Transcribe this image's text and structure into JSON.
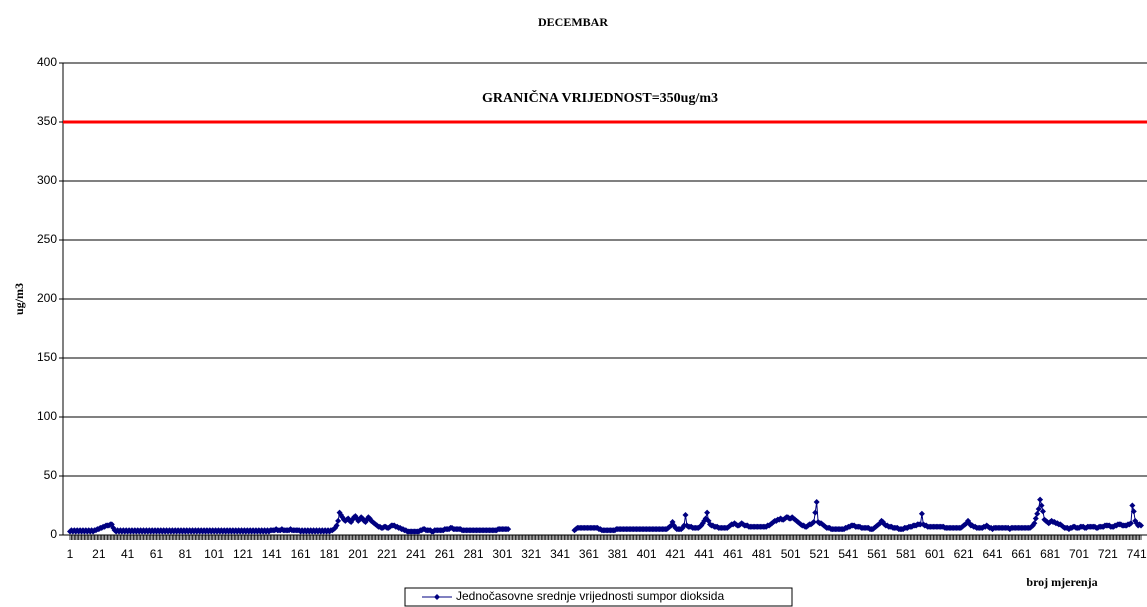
{
  "chart_data": {
    "type": "line",
    "title": "DECEMBAR",
    "y_label": "ug/m3",
    "x_label": "broj mjerenja",
    "threshold": {
      "value": 350,
      "label": "GRANIČNA VRIJEDNOST=350ug/m3",
      "color": "#ff0000"
    },
    "xlim": [
      1,
      744
    ],
    "xticks": [
      1,
      21,
      41,
      61,
      81,
      101,
      121,
      141,
      161,
      181,
      201,
      221,
      241,
      261,
      281,
      301,
      321,
      341,
      361,
      381,
      401,
      421,
      441,
      461,
      481,
      501,
      521,
      541,
      561,
      581,
      601,
      621,
      641,
      661,
      681,
      701,
      721,
      741
    ],
    "ylim": [
      0,
      400
    ],
    "yticks": [
      0,
      50,
      100,
      150,
      200,
      250,
      300,
      350,
      400
    ],
    "grid": true,
    "legend": "bottom",
    "x": [
      1,
      2,
      3,
      4,
      5,
      6,
      7,
      8,
      9,
      10,
      11,
      12,
      13,
      14,
      15,
      16,
      17,
      18,
      19,
      20,
      21,
      22,
      23,
      24,
      25,
      26,
      27,
      28,
      29,
      30,
      31,
      32,
      33,
      34,
      35,
      36,
      37,
      38,
      39,
      40,
      41,
      42,
      43,
      44,
      45,
      46,
      47,
      48,
      49,
      50,
      51,
      52,
      53,
      54,
      55,
      56,
      57,
      58,
      59,
      60,
      61,
      62,
      63,
      64,
      65,
      66,
      67,
      68,
      69,
      70,
      71,
      72,
      73,
      74,
      75,
      76,
      77,
      78,
      79,
      80,
      81,
      82,
      83,
      84,
      85,
      86,
      87,
      88,
      89,
      90,
      91,
      92,
      93,
      94,
      95,
      96,
      97,
      98,
      99,
      100,
      101,
      102,
      103,
      104,
      105,
      106,
      107,
      108,
      109,
      110,
      111,
      112,
      113,
      114,
      115,
      116,
      117,
      118,
      119,
      120,
      121,
      122,
      123,
      124,
      125,
      126,
      127,
      128,
      129,
      130,
      131,
      132,
      133,
      134,
      135,
      136,
      137,
      138,
      139,
      140,
      141,
      142,
      143,
      144,
      145,
      146,
      147,
      148,
      149,
      150,
      151,
      152,
      153,
      154,
      155,
      156,
      157,
      158,
      159,
      160,
      161,
      162,
      163,
      164,
      165,
      166,
      167,
      168,
      169,
      170,
      171,
      172,
      173,
      174,
      175,
      176,
      177,
      178,
      179,
      180,
      181,
      182,
      183,
      184,
      185,
      186,
      187,
      188,
      189,
      190,
      191,
      192,
      193,
      194,
      195,
      196,
      197,
      198,
      199,
      200,
      201,
      202,
      203,
      204,
      205,
      206,
      207,
      208,
      209,
      210,
      211,
      212,
      213,
      214,
      215,
      216,
      217,
      218,
      219,
      220,
      221,
      222,
      223,
      224,
      225,
      226,
      227,
      228,
      229,
      230,
      231,
      232,
      233,
      234,
      235,
      236,
      237,
      238,
      239,
      240,
      241,
      242,
      243,
      244,
      245,
      246,
      247,
      248,
      249,
      250,
      251,
      252,
      253,
      254,
      255,
      256,
      257,
      258,
      259,
      260,
      261,
      262,
      263,
      264,
      265,
      266,
      267,
      268,
      269,
      270,
      271,
      272,
      273,
      274,
      275,
      276,
      277,
      278,
      279,
      280,
      281,
      282,
      283,
      284,
      285,
      286,
      287,
      288,
      289,
      290,
      291,
      292,
      293,
      294,
      295,
      296,
      297,
      298,
      299,
      300,
      301,
      302,
      303,
      304,
      305,
      306,
      307,
      308,
      309,
      310,
      311,
      312,
      313,
      314,
      315,
      316,
      317,
      318,
      319,
      320,
      321,
      322,
      323,
      324,
      325,
      326,
      327,
      328,
      329,
      330,
      331,
      332,
      333,
      334,
      335,
      336,
      337,
      338,
      339,
      340,
      341,
      342,
      343,
      344,
      345,
      346,
      347,
      348,
      349,
      350,
      351,
      352,
      353,
      354,
      355,
      356,
      357,
      358,
      359,
      360,
      361,
      362,
      363,
      364,
      365,
      366,
      367,
      368,
      369,
      370,
      371,
      372,
      373,
      374,
      375,
      376,
      377,
      378,
      379,
      380,
      381,
      382,
      383,
      384,
      385,
      386,
      387,
      388,
      389,
      390,
      391,
      392,
      393,
      394,
      395,
      396,
      397,
      398,
      399,
      400,
      401,
      402,
      403,
      404,
      405,
      406,
      407,
      408,
      409,
      410,
      411,
      412,
      413,
      414,
      415,
      416,
      417,
      418,
      419,
      420,
      421,
      422,
      423,
      424,
      425,
      426,
      427,
      428,
      429,
      430,
      431,
      432,
      433,
      434,
      435,
      436,
      437,
      438,
      439,
      440,
      441,
      442,
      443,
      444,
      445,
      446,
      447,
      448,
      449,
      450,
      451,
      452,
      453,
      454,
      455,
      456,
      457,
      458,
      459,
      460,
      461,
      462,
      463,
      464,
      465,
      466,
      467,
      468,
      469,
      470,
      471,
      472,
      473,
      474,
      475,
      476,
      477,
      478,
      479,
      480,
      481,
      482,
      483,
      484,
      485,
      486,
      487,
      488,
      489,
      490,
      491,
      492,
      493,
      494,
      495,
      496,
      497,
      498,
      499,
      500,
      501,
      502,
      503,
      504,
      505,
      506,
      507,
      508,
      509,
      510,
      511,
      512,
      513,
      514,
      515,
      516,
      517,
      518,
      519,
      520,
      521,
      522,
      523,
      524,
      525,
      526,
      527,
      528,
      529,
      530,
      531,
      532,
      533,
      534,
      535,
      536,
      537,
      538,
      539,
      540,
      541,
      542,
      543,
      544,
      545,
      546,
      547,
      548,
      549,
      550,
      551,
      552,
      553,
      554,
      555,
      556,
      557,
      558,
      559,
      560,
      561,
      562,
      563,
      564,
      565,
      566,
      567,
      568,
      569,
      570,
      571,
      572,
      573,
      574,
      575,
      576,
      577,
      578,
      579,
      580,
      581,
      582,
      583,
      584,
      585,
      586,
      587,
      588,
      589,
      590,
      591,
      592,
      593,
      594,
      595,
      596,
      597,
      598,
      599,
      600,
      601,
      602,
      603,
      604,
      605,
      606,
      607,
      608,
      609,
      610,
      611,
      612,
      613,
      614,
      615,
      616,
      617,
      618,
      619,
      620,
      621,
      622,
      623,
      624,
      625,
      626,
      627,
      628,
      629,
      630,
      631,
      632,
      633,
      634,
      635,
      636,
      637,
      638,
      639,
      640,
      641,
      642,
      643,
      644,
      645,
      646,
      647,
      648,
      649,
      650,
      651,
      652,
      653,
      654,
      655,
      656,
      657,
      658,
      659,
      660,
      661,
      662,
      663,
      664,
      665,
      666,
      667,
      668,
      669,
      670,
      671,
      672,
      673,
      674,
      675,
      676,
      677,
      678,
      679,
      680,
      681,
      682,
      683,
      684,
      685,
      686,
      687,
      688,
      689,
      690,
      691,
      692,
      693,
      694,
      695,
      696,
      697,
      698,
      699,
      700,
      701,
      702,
      703,
      704,
      705,
      706,
      707,
      708,
      709,
      710,
      711,
      712,
      713,
      714,
      715,
      716,
      717,
      718,
      719,
      720,
      721,
      722,
      723,
      724,
      725,
      726,
      727,
      728,
      729,
      730,
      731,
      732,
      733,
      734,
      735,
      736,
      737,
      738,
      739,
      740,
      741,
      742,
      743,
      744
    ],
    "series": [
      {
        "name": "Jednočasovne srednje vrijednosti sumpor dioksida",
        "color": "#000080",
        "values": [
          3,
          4,
          3,
          4,
          3,
          4,
          3,
          4,
          3,
          4,
          3,
          4,
          3,
          4,
          3,
          4,
          3,
          4,
          4,
          5,
          5,
          6,
          6,
          7,
          7,
          8,
          8,
          8,
          9,
          9,
          6,
          4,
          3,
          4,
          3,
          4,
          3,
          4,
          3,
          4,
          3,
          4,
          3,
          4,
          3,
          4,
          3,
          4,
          3,
          4,
          3,
          4,
          3,
          4,
          3,
          4,
          3,
          4,
          3,
          4,
          3,
          4,
          3,
          4,
          3,
          4,
          3,
          4,
          3,
          4,
          3,
          4,
          3,
          4,
          3,
          4,
          3,
          4,
          3,
          4,
          3,
          4,
          3,
          4,
          3,
          4,
          3,
          4,
          3,
          4,
          3,
          4,
          3,
          4,
          3,
          4,
          3,
          4,
          3,
          4,
          3,
          4,
          3,
          4,
          3,
          4,
          3,
          4,
          3,
          4,
          3,
          4,
          3,
          4,
          3,
          4,
          3,
          4,
          3,
          4,
          3,
          4,
          3,
          4,
          3,
          4,
          3,
          4,
          3,
          4,
          3,
          4,
          3,
          4,
          3,
          4,
          3,
          4,
          3,
          4,
          4,
          4,
          4,
          5,
          4,
          4,
          4,
          5,
          4,
          4,
          4,
          4,
          4,
          5,
          4,
          4,
          4,
          4,
          4,
          4,
          3,
          4,
          3,
          4,
          3,
          4,
          3,
          4,
          3,
          4,
          3,
          4,
          3,
          4,
          3,
          4,
          3,
          4,
          3,
          4,
          3,
          4,
          4,
          5,
          6,
          8,
          12,
          19,
          17,
          15,
          13,
          12,
          13,
          14,
          12,
          11,
          13,
          15,
          16,
          14,
          12,
          13,
          15,
          14,
          12,
          11,
          13,
          15,
          14,
          12,
          11,
          10,
          9,
          8,
          7,
          7,
          6,
          6,
          7,
          7,
          6,
          6,
          7,
          8,
          8,
          8,
          7,
          7,
          6,
          6,
          5,
          5,
          4,
          4,
          3,
          3,
          3,
          3,
          3,
          3,
          3,
          3,
          3,
          4,
          4,
          5,
          5,
          4,
          4,
          4,
          4,
          3,
          3,
          4,
          4,
          4,
          4,
          4,
          4,
          4,
          5,
          5,
          5,
          5,
          6,
          6,
          5,
          5,
          5,
          5,
          5,
          5,
          4,
          4,
          4,
          4,
          4,
          4,
          4,
          4,
          4,
          4,
          4,
          4,
          4,
          4,
          4,
          4,
          4,
          4,
          4,
          4,
          4,
          4,
          4,
          4,
          4,
          5,
          5,
          5,
          5,
          5,
          5,
          5,
          5,
          null,
          null,
          null,
          null,
          null,
          null,
          null,
          null,
          null,
          null,
          null,
          null,
          null,
          null,
          null,
          null,
          null,
          null,
          null,
          null,
          null,
          null,
          null,
          null,
          null,
          null,
          null,
          null,
          null,
          null,
          null,
          null,
          null,
          null,
          null,
          null,
          null,
          null,
          null,
          null,
          null,
          null,
          null,
          null,
          null,
          4,
          5,
          6,
          6,
          6,
          6,
          6,
          6,
          6,
          6,
          6,
          6,
          6,
          6,
          6,
          6,
          6,
          5,
          5,
          4,
          4,
          4,
          4,
          4,
          4,
          4,
          4,
          4,
          4,
          5,
          5,
          5,
          5,
          5,
          5,
          5,
          5,
          5,
          5,
          5,
          5,
          5,
          5,
          5,
          5,
          5,
          5,
          5,
          5,
          5,
          5,
          5,
          5,
          5,
          5,
          5,
          5,
          5,
          5,
          5,
          5,
          5,
          5,
          5,
          5,
          6,
          7,
          8,
          11,
          8,
          6,
          5,
          5,
          5,
          5,
          6,
          8,
          17,
          8,
          7,
          7,
          7,
          6,
          6,
          6,
          6,
          6,
          7,
          8,
          10,
          12,
          14,
          19,
          12,
          9,
          8,
          8,
          7,
          7,
          7,
          6,
          6,
          6,
          6,
          6,
          6,
          6,
          7,
          8,
          9,
          9,
          10,
          9,
          8,
          8,
          9,
          10,
          9,
          8,
          8,
          8,
          7,
          7,
          7,
          7,
          7,
          7,
          7,
          7,
          7,
          7,
          7,
          7,
          7,
          8,
          8,
          9,
          10,
          11,
          12,
          12,
          13,
          13,
          14,
          13,
          13,
          14,
          15,
          15,
          14,
          14,
          15,
          14,
          13,
          12,
          11,
          10,
          9,
          8,
          8,
          7,
          7,
          8,
          9,
          9,
          10,
          11,
          19,
          28,
          11,
          10,
          10,
          9,
          8,
          7,
          6,
          6,
          6,
          5,
          5,
          5,
          5,
          5,
          5,
          5,
          5,
          5,
          5,
          6,
          6,
          7,
          7,
          8,
          8,
          8,
          7,
          7,
          7,
          7,
          6,
          6,
          6,
          6,
          6,
          6,
          5,
          5,
          5,
          6,
          7,
          8,
          9,
          10,
          12,
          11,
          9,
          8,
          8,
          7,
          7,
          7,
          6,
          6,
          6,
          6,
          5,
          5,
          5,
          5,
          6,
          6,
          6,
          7,
          7,
          7,
          8,
          8,
          8,
          9,
          9,
          9,
          18,
          9,
          8,
          8,
          7,
          7,
          7,
          7,
          7,
          7,
          7,
          7,
          7,
          7,
          7,
          7,
          6,
          6,
          6,
          6,
          6,
          6,
          6,
          6,
          6,
          6,
          6,
          6,
          7,
          8,
          9,
          10,
          12,
          10,
          8,
          8,
          7,
          7,
          6,
          6,
          6,
          6,
          6,
          7,
          7,
          8,
          7,
          6,
          6,
          5,
          6,
          6,
          6,
          6,
          6,
          6,
          6,
          6,
          6,
          6,
          6,
          5,
          6,
          6,
          6,
          6,
          6,
          6,
          6,
          6,
          6,
          6,
          6,
          6,
          6,
          6,
          7,
          8,
          10,
          14,
          18,
          22,
          30,
          25,
          20,
          13,
          12,
          11,
          10,
          11,
          12,
          11,
          11,
          10,
          10,
          9,
          9,
          8,
          7,
          6,
          6,
          6,
          5,
          6,
          6,
          7,
          7,
          6,
          6,
          6,
          7,
          7,
          7,
          6,
          6,
          7,
          7,
          7,
          7,
          7,
          7,
          6,
          6,
          7,
          7,
          7,
          7,
          8,
          8,
          8,
          8,
          7,
          7,
          7,
          8,
          8,
          9,
          9,
          9,
          8,
          8,
          8,
          8,
          9,
          9,
          10,
          25,
          20,
          12,
          10,
          8,
          9,
          8
        ]
      }
    ]
  }
}
